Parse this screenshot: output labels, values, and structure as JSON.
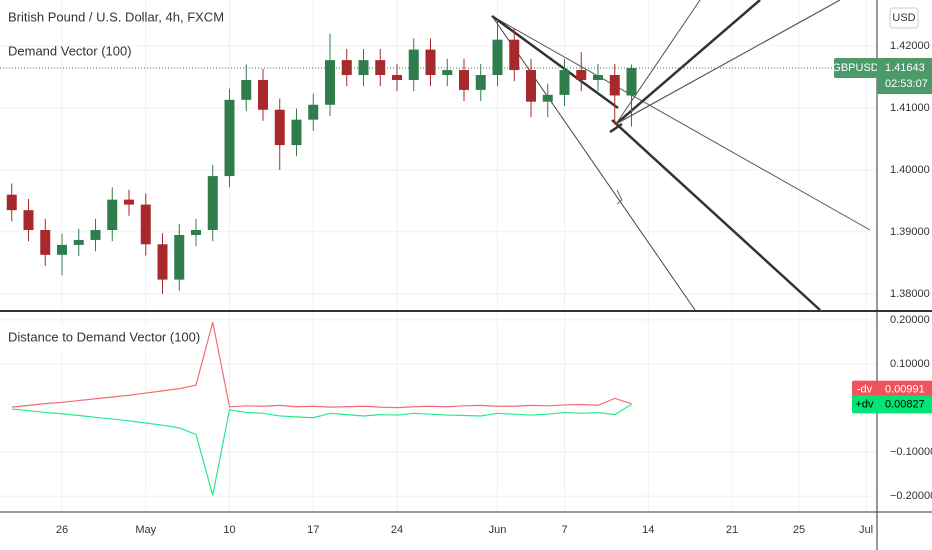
{
  "chart_data": [
    {
      "type": "candlestick",
      "title": "British Pound / U.S. Dollar, 4h, FXCM",
      "subtitle": "Demand Vector (100)",
      "currency": "USD",
      "symbol": "GBPUSD",
      "countdown": "02:53:07",
      "up_color": "#2f7d4c",
      "down_color": "#a8282c",
      "grid": true,
      "x": [
        null,
        null,
        null,
        "26",
        null,
        null,
        null,
        null,
        "May",
        null,
        null,
        null,
        null,
        "10",
        null,
        null,
        null,
        null,
        "17",
        null,
        null,
        null,
        null,
        "24",
        null,
        null,
        null,
        null,
        null,
        "Jun",
        null,
        null,
        null,
        "7",
        null,
        null,
        null,
        null,
        "14",
        null,
        null,
        null,
        null,
        "21",
        null,
        null,
        null,
        "25",
        null,
        null,
        null,
        "Jul",
        null
      ],
      "open": [
        1.396,
        1.3935,
        1.3903,
        1.3863,
        1.3879,
        1.3887,
        1.3903,
        1.3952,
        1.3944,
        1.388,
        1.3823,
        1.3895,
        1.3903,
        1.399,
        1.4113,
        1.4145,
        1.4097,
        1.404,
        1.4081,
        1.4105,
        1.4177,
        1.4153,
        1.4177,
        1.4153,
        1.4145,
        1.4194,
        1.4153,
        1.4161,
        1.4129,
        1.4153,
        1.421,
        1.4161,
        1.411,
        1.4121,
        1.4161,
        1.4145,
        1.4153,
        1.412,
        null,
        null,
        null,
        null,
        null,
        null,
        null,
        null,
        null,
        null,
        null,
        null,
        null,
        null,
        null
      ],
      "high": [
        1.3978,
        1.3953,
        1.3921,
        1.3897,
        1.3905,
        1.3921,
        1.3972,
        1.3968,
        1.3962,
        1.3898,
        1.3913,
        1.3921,
        1.4008,
        1.4131,
        1.417,
        1.4163,
        1.4115,
        1.4099,
        1.4123,
        1.422,
        1.4195,
        1.4195,
        1.4195,
        1.4171,
        1.4212,
        1.4212,
        1.4179,
        1.4179,
        1.4171,
        1.4242,
        1.4228,
        1.4179,
        1.4139,
        1.4179,
        1.419,
        1.4171,
        1.4171,
        1.417,
        null,
        null,
        null,
        null,
        null,
        null,
        null,
        null,
        null,
        null,
        null,
        null,
        null,
        null,
        null
      ],
      "low": [
        1.3917,
        1.3885,
        1.3845,
        1.383,
        1.3861,
        1.3869,
        1.3885,
        1.3926,
        1.3862,
        1.38,
        1.3805,
        1.3877,
        1.3885,
        1.3972,
        1.4095,
        1.4079,
        1.4,
        1.4022,
        1.4063,
        1.4087,
        1.4135,
        1.4135,
        1.4135,
        1.4127,
        1.4127,
        1.4135,
        1.4135,
        1.4111,
        1.4111,
        1.4135,
        1.4143,
        1.4085,
        1.4085,
        1.4103,
        1.4127,
        1.4127,
        1.4073,
        1.407,
        null,
        null,
        null,
        null,
        null,
        null,
        null,
        null,
        null,
        null,
        null,
        null,
        null,
        null,
        null
      ],
      "close": [
        1.3935,
        1.3903,
        1.3863,
        1.3879,
        1.3887,
        1.3903,
        1.3952,
        1.3944,
        1.388,
        1.3823,
        1.3895,
        1.3903,
        1.399,
        1.4113,
        1.4145,
        1.4097,
        1.404,
        1.4081,
        1.4105,
        1.4177,
        1.4153,
        1.4177,
        1.4153,
        1.4145,
        1.4194,
        1.4153,
        1.4161,
        1.4129,
        1.4153,
        1.421,
        1.4161,
        1.411,
        1.4121,
        1.4161,
        1.4145,
        1.4153,
        1.412,
        1.41643,
        null,
        null,
        null,
        null,
        null,
        null,
        null,
        null,
        null,
        null,
        null,
        null,
        null,
        null,
        null
      ],
      "ylim": [
        1.3774,
        1.4274
      ],
      "yticks": [
        {
          "value": 1.38,
          "label": "1.38000"
        },
        {
          "value": 1.39,
          "label": "1.39000"
        },
        {
          "value": 1.4,
          "label": "1.40000"
        },
        {
          "value": 1.41,
          "label": "1.41000"
        },
        {
          "value": 1.42,
          "label": "1.42000"
        }
      ]
    },
    {
      "type": "line",
      "title": "Distance to Demand Vector (100)",
      "grid": true,
      "series": [
        {
          "name": "-dv",
          "color": "#f0545a",
          "values": [
            0.002,
            0.006,
            0.01,
            0.013,
            0.017,
            0.021,
            0.025,
            0.029,
            0.034,
            0.039,
            0.044,
            0.052,
            0.195,
            0.003,
            0.005,
            0.004,
            0.006,
            0.003,
            0.004,
            0.002,
            0.003,
            0.004,
            0.002,
            0.001,
            0.003,
            0.004,
            0.003,
            0.005,
            0.006,
            0.004,
            0.004,
            0.006,
            0.005,
            0.007,
            0.008,
            0.006,
            0.022,
            0.00991,
            null,
            null,
            null,
            null,
            null,
            null,
            null,
            null,
            null,
            null,
            null,
            null,
            null,
            null,
            null
          ]
        },
        {
          "name": "+dv",
          "color": "#00e676",
          "values": [
            -0.002,
            -0.006,
            -0.01,
            -0.013,
            -0.017,
            -0.021,
            -0.025,
            -0.029,
            -0.034,
            -0.039,
            -0.045,
            -0.06,
            -0.198,
            -0.004,
            -0.01,
            -0.012,
            -0.018,
            -0.02,
            -0.022,
            -0.012,
            -0.015,
            -0.018,
            -0.015,
            -0.016,
            -0.012,
            -0.014,
            -0.016,
            -0.017,
            -0.018,
            -0.012,
            -0.014,
            -0.016,
            -0.014,
            -0.01,
            -0.012,
            -0.01,
            -0.015,
            0.00827,
            null,
            null,
            null,
            null,
            null,
            null,
            null,
            null,
            null,
            null,
            null,
            null,
            null,
            null,
            null
          ]
        }
      ],
      "ylim": [
        -0.236,
        0.218
      ],
      "yticks": [
        {
          "value": -0.2,
          "label": "−0.20000"
        },
        {
          "value": -0.1,
          "label": "−0.10000"
        },
        {
          "value": 0.1,
          "label": "0.10000"
        },
        {
          "value": 0.2,
          "label": "0.20000"
        }
      ]
    }
  ]
}
